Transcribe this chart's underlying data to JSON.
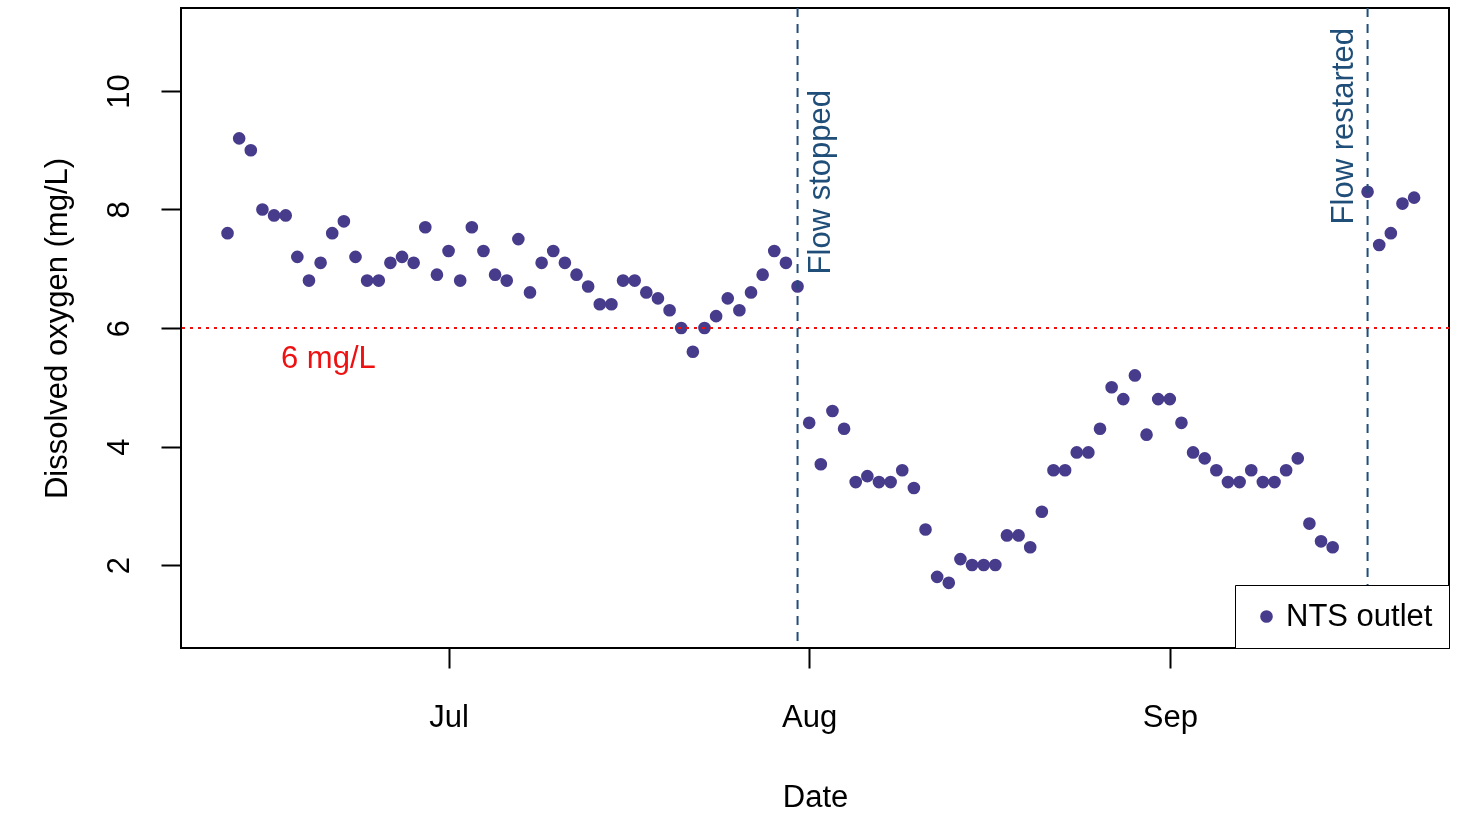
{
  "chart_data": {
    "type": "scatter",
    "xlabel": "Date",
    "ylabel": "Dissolved oxygen (mg/L)",
    "xlim": [
      "--06-08",
      "--09-25"
    ],
    "xticks": [
      {
        "value": "--07-01",
        "label": "Jul"
      },
      {
        "value": "--08-01",
        "label": "Aug"
      },
      {
        "value": "--09-01",
        "label": "Sep"
      }
    ],
    "ylim": [
      0.6,
      11.4
    ],
    "yticks": [
      2,
      4,
      6,
      8,
      10
    ],
    "grid": false,
    "legend": "bottom right",
    "marker": "circle",
    "series": [
      {
        "name": "NTS outlet",
        "color": "#473b8b",
        "x": [
          "--06-12",
          "--06-13",
          "--06-14",
          "--06-15",
          "--06-16",
          "--06-17",
          "--06-18",
          "--06-19",
          "--06-20",
          "--06-21",
          "--06-22",
          "--06-23",
          "--06-24",
          "--06-25",
          "--06-26",
          "--06-27",
          "--06-28",
          "--06-29",
          "--06-30",
          "--07-01",
          "--07-02",
          "--07-03",
          "--07-04",
          "--07-05",
          "--07-06",
          "--07-07",
          "--07-08",
          "--07-09",
          "--07-10",
          "--07-11",
          "--07-12",
          "--07-13",
          "--07-14",
          "--07-15",
          "--07-16",
          "--07-17",
          "--07-18",
          "--07-19",
          "--07-20",
          "--07-21",
          "--07-22",
          "--07-23",
          "--07-24",
          "--07-25",
          "--07-26",
          "--07-27",
          "--07-28",
          "--07-29",
          "--07-30",
          "--07-31",
          "--08-01",
          "--08-02",
          "--08-03",
          "--08-04",
          "--08-05",
          "--08-06",
          "--08-07",
          "--08-08",
          "--08-09",
          "--08-10",
          "--08-11",
          "--08-12",
          "--08-13",
          "--08-14",
          "--08-15",
          "--08-16",
          "--08-17",
          "--08-18",
          "--08-19",
          "--08-20",
          "--08-21",
          "--08-22",
          "--08-23",
          "--08-24",
          "--08-25",
          "--08-26",
          "--08-27",
          "--08-28",
          "--08-29",
          "--08-30",
          "--08-31",
          "--09-01",
          "--09-02",
          "--09-03",
          "--09-04",
          "--09-05",
          "--09-06",
          "--09-07",
          "--09-08",
          "--09-09",
          "--09-10",
          "--09-11",
          "--09-12",
          "--09-13",
          "--09-14",
          "--09-15",
          "--09-18",
          "--09-19",
          "--09-20",
          "--09-21",
          "--09-22"
        ],
        "values": [
          7.6,
          9.2,
          9.0,
          8.0,
          7.9,
          7.9,
          7.2,
          6.8,
          7.1,
          7.6,
          7.8,
          7.2,
          6.8,
          6.8,
          7.1,
          7.2,
          7.1,
          7.7,
          6.9,
          7.3,
          6.8,
          7.7,
          7.3,
          6.9,
          6.8,
          7.5,
          6.6,
          7.1,
          7.3,
          7.1,
          6.9,
          6.7,
          6.4,
          6.4,
          6.8,
          6.8,
          6.6,
          6.5,
          6.3,
          6.0,
          5.6,
          6.0,
          6.2,
          6.5,
          6.3,
          6.6,
          6.9,
          7.3,
          7.1,
          6.7,
          4.4,
          3.7,
          4.6,
          4.3,
          3.4,
          3.5,
          3.4,
          3.4,
          3.6,
          3.3,
          2.6,
          1.8,
          1.7,
          2.1,
          2.0,
          2.0,
          2.0,
          2.5,
          2.5,
          2.3,
          2.9,
          3.6,
          3.6,
          3.9,
          3.9,
          4.3,
          5.0,
          4.8,
          5.2,
          4.2,
          4.8,
          4.8,
          4.4,
          3.9,
          3.8,
          3.6,
          3.4,
          3.4,
          3.6,
          3.4,
          3.4,
          3.6,
          3.8,
          2.7,
          2.4,
          2.3,
          8.3,
          7.4,
          7.6,
          8.1,
          8.2
        ]
      }
    ],
    "ref_lines": [
      {
        "axis": "y",
        "value": 6,
        "label": "6 mg/L",
        "color": "#ee1111",
        "line_style": "dotted"
      },
      {
        "axis": "x",
        "value": "--07-31",
        "label": "Flow stopped",
        "color": "#1f4e79",
        "line_style": "dashed"
      },
      {
        "axis": "x",
        "value": "--09-18",
        "label": "Flow restarted",
        "color": "#1f4e79",
        "line_style": "dashed"
      }
    ]
  }
}
